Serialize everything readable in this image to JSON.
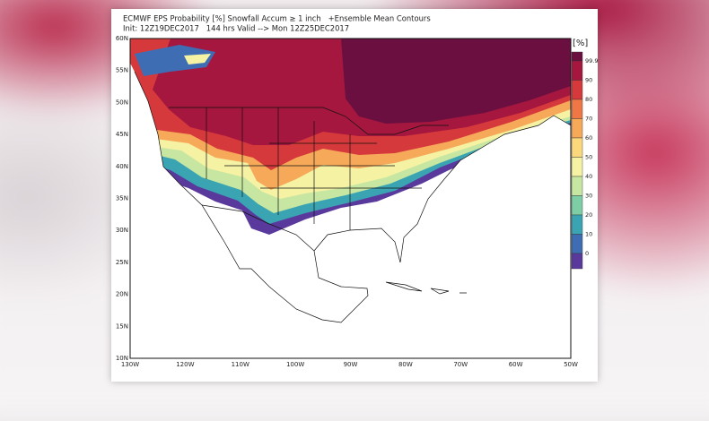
{
  "header": {
    "title": "ECMWF EPS Probability [%] Snowfall Accum ≥ 1 inch   +Ensemble Mean Contours",
    "subtitle": "Init: 12Z19DEC2017   144 hrs Valid --> Mon 12Z25DEC2017"
  },
  "map": {
    "lat_labels": [
      "60N",
      "55N",
      "50N",
      "45N",
      "40N",
      "35N",
      "30N",
      "25N",
      "20N",
      "15N",
      "10N"
    ],
    "lon_labels": [
      "130W",
      "120W",
      "110W",
      "100W",
      "90W",
      "80W",
      "70W",
      "60W",
      "50W"
    ]
  },
  "colorbar": {
    "unit": "[%]",
    "labels": [
      "99.9",
      "90",
      "80",
      "70",
      "60",
      "50",
      "40",
      "30",
      "20",
      "10",
      "0"
    ],
    "colors": [
      "#6b0f40",
      "#a5173f",
      "#d6393b",
      "#ee7745",
      "#f7a95a",
      "#fbd87b",
      "#f5f2a4",
      "#c6e6a1",
      "#7dcea4",
      "#3aa4b3",
      "#3e6db4",
      "#5a399d",
      "#ffffff"
    ]
  }
}
